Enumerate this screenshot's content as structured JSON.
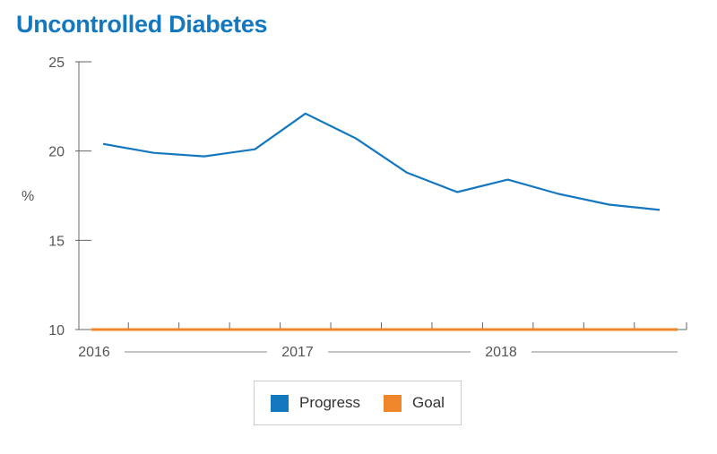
{
  "title": "Uncontrolled Diabetes",
  "chart_data": {
    "type": "line",
    "ylabel": "%",
    "xlabel": "",
    "ylim": [
      10,
      25
    ],
    "yticks": [
      10,
      15,
      20,
      25
    ],
    "x_year_labels": [
      "2016",
      "2017",
      "2018"
    ],
    "x": [
      "2016-Q1",
      "2016-Q2",
      "2016-Q3",
      "2016-Q4",
      "2017-Q1",
      "2017-Q2",
      "2017-Q3",
      "2017-Q4",
      "2018-Q1",
      "2018-Q2",
      "2018-Q3",
      "2018-Q4"
    ],
    "series": [
      {
        "name": "Progress",
        "color": "#1478be",
        "values": [
          20.4,
          19.9,
          19.7,
          20.1,
          22.1,
          20.7,
          18.8,
          17.7,
          18.4,
          17.6,
          17.0,
          16.7
        ]
      },
      {
        "name": "Goal",
        "color": "#f0862a",
        "values": [
          10,
          10,
          10,
          10,
          10,
          10,
          10,
          10,
          10,
          10,
          10,
          10
        ]
      }
    ],
    "grid": false,
    "legend_position": "bottom-center"
  }
}
